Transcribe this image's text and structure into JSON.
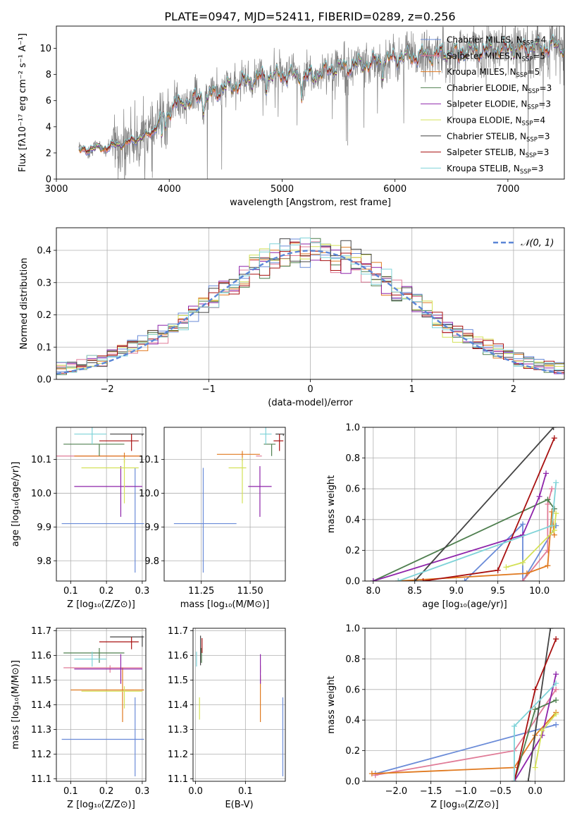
{
  "title": "PLATE=0947, MJD=52411, FIBERID=0289, z=0.256",
  "colors": [
    "#6a8bd8",
    "#e07b97",
    "#e07a20",
    "#4f7f4f",
    "#8e24aa",
    "#d4e157",
    "#444444",
    "#a81010",
    "#7fd3d8"
  ],
  "legend": [
    {
      "name": "Chabrier MILES",
      "nssp": "4"
    },
    {
      "name": "Salpeter MILES",
      "nssp": "5"
    },
    {
      "name": "Kroupa MILES",
      "nssp": "5"
    },
    {
      "name": "Chabrier ELODIE",
      "nssp": "3"
    },
    {
      "name": "Salpeter ELODIE",
      "nssp": "3"
    },
    {
      "name": "Kroupa ELODIE",
      "nssp": "4"
    },
    {
      "name": "Chabrier STELIB",
      "nssp": "3"
    },
    {
      "name": "Salpeter STELIB",
      "nssp": "3"
    },
    {
      "name": "Kroupa STELIB",
      "nssp": "3"
    }
  ],
  "chart_data": [
    {
      "type": "line",
      "id": "spectrum",
      "xlabel": "wavelength [Angstrom, rest frame]",
      "ylabel": "Flux [fλ10⁻¹⁷ erg cm⁻² s⁻¹ A⁻¹]",
      "xlim": [
        3000,
        7500
      ],
      "ylim": [
        0,
        11.7
      ],
      "xticks": [
        3000,
        4000,
        5000,
        6000,
        7000
      ],
      "yticks": [
        0,
        2,
        4,
        6,
        8,
        10
      ],
      "data_range": [
        3200,
        7500
      ],
      "data_color": "#808080",
      "continuum": [
        [
          3200,
          2.2
        ],
        [
          3500,
          2.5
        ],
        [
          3700,
          3.0
        ],
        [
          3850,
          3.6
        ],
        [
          3950,
          4.8
        ],
        [
          4050,
          5.8
        ],
        [
          4300,
          6.3
        ],
        [
          4500,
          7.0
        ],
        [
          4800,
          7.8
        ],
        [
          5000,
          8.0
        ],
        [
          5200,
          7.8
        ],
        [
          5500,
          8.6
        ],
        [
          5800,
          8.9
        ],
        [
          6000,
          9.3
        ],
        [
          6300,
          9.5
        ],
        [
          6600,
          9.8
        ],
        [
          7000,
          10.0
        ],
        [
          7500,
          10.2
        ]
      ]
    },
    {
      "type": "histogram",
      "id": "residuals",
      "xlabel": "(data-model)/error",
      "ylabel": "Normed distribution",
      "xlim": [
        -2.5,
        2.5
      ],
      "ylim": [
        0,
        0.47
      ],
      "xticks": [
        -2,
        -1,
        0,
        1,
        2
      ],
      "yticks": [
        0.0,
        0.1,
        0.2,
        0.3,
        0.4
      ],
      "bin_width": 0.1,
      "normal_label": "𝒩(0, 1)",
      "normal_color": "#5b86d6"
    },
    {
      "type": "scatter",
      "id": "age-vs-Z",
      "xlabel": "Z [log₁₀(Z/Z⊙)]",
      "ylabel": "age  [log₁₀(age/yr)]",
      "xlim": [
        0.06,
        0.31
      ],
      "ylim": [
        9.74,
        10.195
      ],
      "xticks": [
        0.1,
        0.2,
        0.3
      ],
      "yticks": [
        9.8,
        9.9,
        10.0,
        10.1
      ],
      "points": [
        {
          "x": 0.28,
          "y": 9.91,
          "xerr": [
            0.205,
            0.025
          ],
          "yerr": [
            0.145,
            0.165
          ]
        },
        {
          "x": 0.18,
          "y": 10.11,
          "xerr": [
            0.18,
            0.12
          ],
          "yerr": [
            0,
            0
          ]
        },
        {
          "x": 0.25,
          "y": 10.11,
          "xerr": [
            0.14,
            0.05
          ],
          "yerr": [
            0.02,
            0.01
          ]
        },
        {
          "x": 0.18,
          "y": 10.145,
          "xerr": [
            0.1,
            0.07
          ],
          "yerr": [
            0.035,
            0.0
          ]
        },
        {
          "x": 0.24,
          "y": 10.02,
          "xerr": [
            0.13,
            0.06
          ],
          "yerr": [
            0.09,
            0.06
          ]
        },
        {
          "x": 0.25,
          "y": 10.075,
          "xerr": [
            0.12,
            0.04
          ],
          "yerr": [
            0.105,
            0.03
          ]
        },
        {
          "x": 0.3,
          "y": 10.175,
          "xerr": [
            0.09,
            0.005
          ],
          "yerr": [
            0.005,
            0.0
          ]
        },
        {
          "x": 0.27,
          "y": 10.155,
          "xerr": [
            0.09,
            0.02
          ],
          "yerr": [
            0.03,
            0.02
          ]
        },
        {
          "x": 0.16,
          "y": 10.175,
          "xerr": [
            0.05,
            0.04
          ],
          "yerr": [
            0.03,
            0.02
          ]
        }
      ]
    },
    {
      "type": "scatter",
      "id": "age-vs-mass",
      "xlabel": "mass [log₁₀(M/M⊙)]",
      "ylabel": "",
      "xlim": [
        11.06,
        11.68
      ],
      "ylim": [
        9.74,
        10.195
      ],
      "xticks": [
        11.25,
        11.5
      ],
      "yticks": [
        9.8,
        9.9,
        10.0,
        10.1
      ],
      "points": [
        {
          "x": 11.26,
          "y": 9.91,
          "xerr": [
            0.15,
            0.17
          ],
          "yerr": [
            0.145,
            0.165
          ]
        },
        {
          "x": 11.55,
          "y": 10.11,
          "xerr": [
            0.02,
            0.01
          ],
          "yerr": [
            0,
            0
          ]
        },
        {
          "x": 11.46,
          "y": 10.115,
          "xerr": [
            0.13,
            0.09
          ],
          "yerr": [
            0.02,
            0.01
          ]
        },
        {
          "x": 11.61,
          "y": 10.145,
          "xerr": [
            0.04,
            0.02
          ],
          "yerr": [
            0.035,
            0.0
          ]
        },
        {
          "x": 11.55,
          "y": 10.02,
          "xerr": [
            0.06,
            0.06
          ],
          "yerr": [
            0.09,
            0.06
          ]
        },
        {
          "x": 11.46,
          "y": 10.075,
          "xerr": [
            0.07,
            0.02
          ],
          "yerr": [
            0.105,
            0.03
          ]
        },
        {
          "x": 11.67,
          "y": 10.175,
          "xerr": [
            0.04,
            0.005
          ],
          "yerr": [
            0.005,
            0.0
          ]
        },
        {
          "x": 11.65,
          "y": 10.155,
          "xerr": [
            0.03,
            0.02
          ],
          "yerr": [
            0.03,
            0.02
          ]
        },
        {
          "x": 11.58,
          "y": 10.175,
          "xerr": [
            0.03,
            0.03
          ],
          "yerr": [
            0.03,
            0.02
          ]
        }
      ]
    },
    {
      "type": "line",
      "id": "massweight-vs-age",
      "xlabel": "age  [log₁₀(age/yr)]",
      "ylabel": "mass weight",
      "xlim": [
        7.9,
        10.3
      ],
      "ylim": [
        0,
        1.0
      ],
      "xticks": [
        8.0,
        8.5,
        9.0,
        9.5,
        10.0
      ],
      "yticks": [
        0.0,
        0.2,
        0.4,
        0.6,
        0.8,
        1.0
      ],
      "series": [
        {
          "x": [
            9.1,
            9.8,
            9.8,
            10.2
          ],
          "y": [
            0.0,
            0.37,
            0.0,
            0.36
          ]
        },
        {
          "x": [
            9.8,
            10.1,
            10.1,
            10.15
          ],
          "y": [
            0.0,
            0.2,
            0.5,
            0.6
          ]
        },
        {
          "x": [
            8.3,
            9.85,
            10.1,
            10.15,
            10.18
          ],
          "y": [
            0.0,
            0.05,
            0.1,
            0.45,
            0.3
          ]
        },
        {
          "x": [
            8.0,
            10.1,
            10.18
          ],
          "y": [
            0.0,
            0.53,
            0.47
          ]
        },
        {
          "x": [
            8.0,
            9.8,
            10.0,
            10.08
          ],
          "y": [
            0.0,
            0.3,
            0.55,
            0.7
          ]
        },
        {
          "x": [
            9.6,
            9.8,
            10.18,
            10.2
          ],
          "y": [
            0.09,
            0.12,
            0.33,
            0.44
          ]
        },
        {
          "x": [
            8.5,
            10.17
          ],
          "y": [
            0.0,
            1.0
          ]
        },
        {
          "x": [
            8.6,
            9.5,
            10.18
          ],
          "y": [
            0.0,
            0.07,
            0.93
          ]
        },
        {
          "x": [
            8.3,
            10.15,
            10.2
          ],
          "y": [
            0.0,
            0.36,
            0.64
          ]
        }
      ]
    },
    {
      "type": "scatter",
      "id": "mass-vs-Z",
      "xlabel": "Z [log₁₀(Z/Z⊙)]",
      "ylabel": "mass [log₁₀(M/M⊙)]",
      "xlim": [
        0.06,
        0.31
      ],
      "ylim": [
        11.09,
        11.71
      ],
      "xticks": [
        0.1,
        0.2,
        0.3
      ],
      "yticks": [
        11.1,
        11.2,
        11.3,
        11.4,
        11.5,
        11.6,
        11.7
      ],
      "points": [
        {
          "x": 0.28,
          "y": 11.26,
          "xerr": [
            0.205,
            0.025
          ],
          "yerr": [
            0.15,
            0.17
          ]
        },
        {
          "x": 0.21,
          "y": 11.55,
          "xerr": [
            0.13,
            0.09
          ],
          "yerr": [
            0.02,
            0.01
          ]
        },
        {
          "x": 0.245,
          "y": 11.46,
          "xerr": [
            0.145,
            0.06
          ],
          "yerr": [
            0.13,
            0.09
          ]
        },
        {
          "x": 0.18,
          "y": 11.61,
          "xerr": [
            0.1,
            0.07
          ],
          "yerr": [
            0.04,
            0.02
          ]
        },
        {
          "x": 0.24,
          "y": 11.545,
          "xerr": [
            0.13,
            0.06
          ],
          "yerr": [
            0.06,
            0.06
          ]
        },
        {
          "x": 0.25,
          "y": 11.455,
          "xerr": [
            0.12,
            0.05
          ],
          "yerr": [
            0.07,
            0.02
          ]
        },
        {
          "x": 0.3,
          "y": 11.675,
          "xerr": [
            0.09,
            0.005
          ],
          "yerr": [
            0.04,
            0.005
          ]
        },
        {
          "x": 0.27,
          "y": 11.655,
          "xerr": [
            0.09,
            0.02
          ],
          "yerr": [
            0.03,
            0.02
          ]
        },
        {
          "x": 0.16,
          "y": 11.585,
          "xerr": [
            0.05,
            0.04
          ],
          "yerr": [
            0.03,
            0.03
          ]
        }
      ]
    },
    {
      "type": "scatter",
      "id": "mass-vs-EBV",
      "xlabel": "E(B-V)",
      "ylabel": "",
      "xlim": [
        -0.005,
        0.18
      ],
      "ylim": [
        11.09,
        11.71
      ],
      "xticks": [
        0.0,
        0.1
      ],
      "yticks": [
        11.1,
        11.2,
        11.3,
        11.4,
        11.5,
        11.6,
        11.7
      ],
      "points": [
        {
          "x": 0.175,
          "y": 11.26,
          "xerr": [
            0,
            0
          ],
          "yerr": [
            0.15,
            0.17
          ]
        },
        {
          "x": 0.13,
          "y": 11.55,
          "xerr": [
            0,
            0
          ],
          "yerr": [
            0.02,
            0.01
          ]
        },
        {
          "x": 0.13,
          "y": 11.43,
          "xerr": [
            0,
            0
          ],
          "yerr": [
            0.1,
            0.09
          ]
        },
        {
          "x": 0.012,
          "y": 11.61,
          "xerr": [
            0,
            0
          ],
          "yerr": [
            0.04,
            0.02
          ]
        },
        {
          "x": 0.13,
          "y": 11.545,
          "xerr": [
            0,
            0
          ],
          "yerr": [
            0.06,
            0.06
          ]
        },
        {
          "x": 0.008,
          "y": 11.41,
          "xerr": [
            0,
            0
          ],
          "yerr": [
            0.07,
            0.02
          ]
        },
        {
          "x": 0.01,
          "y": 11.6,
          "xerr": [
            0,
            0
          ],
          "yerr": [
            0.04,
            0.08
          ]
        },
        {
          "x": 0.013,
          "y": 11.64,
          "xerr": [
            0,
            0
          ],
          "yerr": [
            0.03,
            0.03
          ]
        },
        {
          "x": 0.002,
          "y": 11.585,
          "xerr": [
            0,
            0
          ],
          "yerr": [
            0.03,
            0.03
          ]
        }
      ]
    },
    {
      "type": "line",
      "id": "massweight-vs-Z",
      "xlabel": "Z [log₁₀(Z/Z⊙)]",
      "ylabel": "mass weight",
      "xlim": [
        -2.45,
        0.42
      ],
      "ylim": [
        0,
        1.0
      ],
      "xticks": [
        -2.0,
        -1.5,
        -1.0,
        -0.5,
        0.0
      ],
      "yticks": [
        0.0,
        0.2,
        0.4,
        0.6,
        0.8,
        1.0
      ],
      "series": [
        {
          "x": [
            -2.3,
            0.3
          ],
          "y": [
            0.05,
            0.37
          ]
        },
        {
          "x": [
            -2.3,
            -0.3,
            0.3
          ],
          "y": [
            0.04,
            0.2,
            0.6
          ]
        },
        {
          "x": [
            -2.35,
            -0.3,
            0.0,
            0.3
          ],
          "y": [
            0.05,
            0.09,
            0.3,
            0.45
          ]
        },
        {
          "x": [
            -0.3,
            0.0,
            0.3
          ],
          "y": [
            0.0,
            0.47,
            0.53
          ]
        },
        {
          "x": [
            -0.3,
            0.1,
            0.3
          ],
          "y": [
            0.0,
            0.3,
            0.7
          ]
        },
        {
          "x": [
            0.0,
            0.1,
            0.3
          ],
          "y": [
            0.09,
            0.33,
            0.44
          ]
        },
        {
          "x": [
            -0.1,
            0.22
          ],
          "y": [
            0.0,
            1.0
          ]
        },
        {
          "x": [
            -0.3,
            0.0,
            0.3
          ],
          "y": [
            0.0,
            0.6,
            0.93
          ]
        },
        {
          "x": [
            -0.3,
            -0.3,
            0.3
          ],
          "y": [
            0.0,
            0.36,
            0.64
          ]
        }
      ]
    }
  ]
}
